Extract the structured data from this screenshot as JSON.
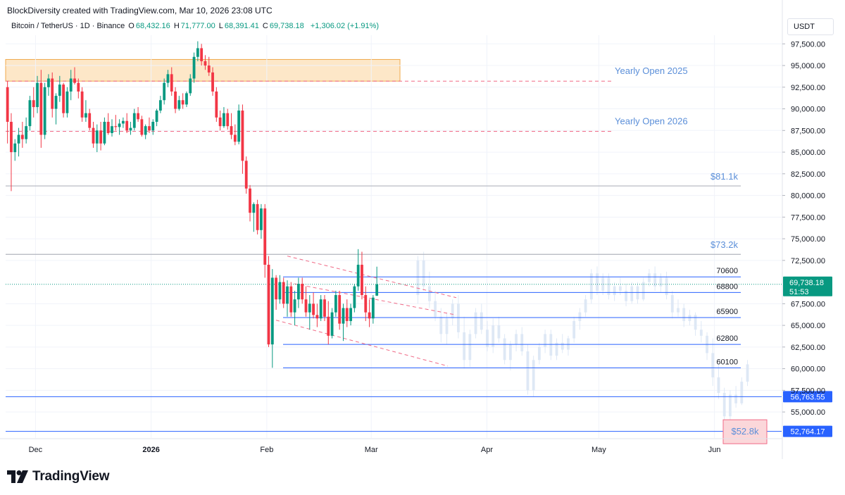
{
  "header": {
    "attribution": "BlockDiversity created with TradingView.com, Mar 10, 2026 23:08 UTC"
  },
  "legend": {
    "symbol": "Bitcoin / TetherUS · 1D · Binance",
    "o_label": "O",
    "o_value": "68,432.16",
    "h_label": "H",
    "h_value": "71,777.00",
    "l_label": "L",
    "l_value": "68,391.41",
    "c_label": "C",
    "c_value": "69,738.18",
    "change": "+1,306.02 (+1.91%)"
  },
  "unit": "USDT",
  "branding": {
    "logo_text": "TradingView"
  },
  "colors": {
    "up": "#089981",
    "down": "#f23645",
    "blue": "#2962ff",
    "level": "#5b8fd9",
    "gray": "#b2b5be",
    "pink_dash": "#f06a86",
    "box_fill": "#fde7c8",
    "box_border": "#f0a94b",
    "ghost": "#dbe6f5"
  },
  "chart_data": {
    "type": "candlestick",
    "x": [
      "2025-11-23",
      "2026-06-19"
    ],
    "ylim": [
      52000,
      98500
    ],
    "y_ticks": [
      "97,500.00",
      "95,000.00",
      "92,500.00",
      "90,000.00",
      "87,500.00",
      "85,000.00",
      "82,500.00",
      "80,000.00",
      "77,500.00",
      "75,000.00",
      "72,500.00",
      "67,500.00",
      "65,000.00",
      "62,500.00",
      "60,000.00",
      "57,500.00",
      "55,000.00"
    ],
    "y_tick_values": [
      97500,
      95000,
      92500,
      90000,
      87500,
      85000,
      82500,
      80000,
      77500,
      75000,
      72500,
      67500,
      65000,
      62500,
      60000,
      57500,
      55000
    ],
    "x_ticks": [
      {
        "label": "Dec",
        "date": "2025-12-01",
        "bold": false
      },
      {
        "label": "2026",
        "date": "2026-01-01",
        "bold": true
      },
      {
        "label": "Feb",
        "date": "2026-02-01",
        "bold": false
      },
      {
        "label": "Mar",
        "date": "2026-03-01",
        "bold": false
      },
      {
        "label": "Apr",
        "date": "2026-04-01",
        "bold": false
      },
      {
        "label": "May",
        "date": "2026-05-01",
        "bold": false
      },
      {
        "label": "Jun",
        "date": "2026-06-01",
        "bold": false
      }
    ],
    "candles": [
      [
        92500,
        93200,
        86000,
        88500
      ],
      [
        88500,
        89500,
        80500,
        85000
      ],
      [
        85000,
        86500,
        84000,
        86000
      ],
      [
        86000,
        87800,
        84500,
        87000
      ],
      [
        87000,
        88500,
        85500,
        86500
      ],
      [
        86500,
        89000,
        86000,
        88000
      ],
      [
        88000,
        91500,
        87500,
        91000
      ],
      [
        91000,
        92500,
        89000,
        90200
      ],
      [
        90200,
        93800,
        89500,
        93000
      ],
      [
        93000,
        94500,
        85500,
        87000
      ],
      [
        87000,
        93000,
        86500,
        92500
      ],
      [
        92500,
        94000,
        91500,
        93500
      ],
      [
        93500,
        94200,
        89000,
        90000
      ],
      [
        90000,
        91800,
        88200,
        91500
      ],
      [
        91500,
        93800,
        90800,
        92800
      ],
      [
        92800,
        93000,
        89000,
        89500
      ],
      [
        89500,
        92500,
        89000,
        92000
      ],
      [
        92000,
        94500,
        91000,
        93500
      ],
      [
        93500,
        94800,
        92800,
        93000
      ],
      [
        93000,
        93500,
        91200,
        92000
      ],
      [
        92000,
        92500,
        88500,
        89000
      ],
      [
        89000,
        91000,
        88500,
        89500
      ],
      [
        89500,
        90000,
        87500,
        87800
      ],
      [
        87800,
        88500,
        85500,
        86000
      ],
      [
        86000,
        88200,
        85000,
        87500
      ],
      [
        87500,
        88500,
        85200,
        86000
      ],
      [
        86000,
        89000,
        85800,
        88500
      ],
      [
        88500,
        89500,
        87000,
        87200
      ],
      [
        87200,
        88800,
        86800,
        88000
      ],
      [
        88000,
        89300,
        87500,
        87900
      ],
      [
        87900,
        88800,
        87000,
        88300
      ],
      [
        88300,
        89000,
        87800,
        88600
      ],
      [
        88600,
        89500,
        87200,
        87500
      ],
      [
        87500,
        88500,
        87000,
        87800
      ],
      [
        87800,
        90000,
        87500,
        89500
      ],
      [
        89500,
        90200,
        88500,
        88800
      ],
      [
        88800,
        89200,
        86800,
        87000
      ],
      [
        87000,
        88200,
        86500,
        88000
      ],
      [
        88000,
        89000,
        87200,
        87500
      ],
      [
        87500,
        88800,
        87000,
        88500
      ],
      [
        88500,
        90000,
        88000,
        89800
      ],
      [
        89800,
        91500,
        89500,
        91000
      ],
      [
        91000,
        93500,
        90500,
        93000
      ],
      [
        93000,
        94500,
        92500,
        94000
      ],
      [
        94000,
        94800,
        91500,
        92000
      ],
      [
        92000,
        92500,
        89500,
        90000
      ],
      [
        90000,
        91500,
        89800,
        91000
      ],
      [
        91000,
        91800,
        90000,
        90500
      ],
      [
        90500,
        92000,
        90200,
        91800
      ],
      [
        91800,
        94000,
        91500,
        93500
      ],
      [
        93500,
        96500,
        93000,
        96000
      ],
      [
        96000,
        97800,
        95500,
        97000
      ],
      [
        97000,
        97500,
        95000,
        95500
      ],
      [
        95500,
        96200,
        94500,
        95000
      ],
      [
        95000,
        96000,
        93800,
        94200
      ],
      [
        94200,
        94800,
        91500,
        92000
      ],
      [
        92000,
        92500,
        88500,
        89000
      ],
      [
        89000,
        89800,
        87500,
        88000
      ],
      [
        88000,
        90200,
        87800,
        89500
      ],
      [
        89500,
        90000,
        87600,
        88000
      ],
      [
        88000,
        89500,
        86500,
        87000
      ],
      [
        87000,
        88200,
        85800,
        86200
      ],
      [
        86200,
        90500,
        85900,
        89800
      ],
      [
        89800,
        90500,
        82500,
        84000
      ],
      [
        84000,
        84500,
        80200,
        80800
      ],
      [
        80800,
        81200,
        77000,
        78000
      ],
      [
        78000,
        79200,
        75800,
        79000
      ],
      [
        79000,
        79500,
        75500,
        76000
      ],
      [
        76000,
        79000,
        75000,
        78500
      ],
      [
        78500,
        79000,
        70500,
        72000
      ],
      [
        72000,
        73000,
        62500,
        62800
      ],
      [
        62800,
        71500,
        60100,
        70500
      ],
      [
        70500,
        70800,
        66800,
        68000
      ],
      [
        68000,
        70800,
        67500,
        70000
      ],
      [
        70000,
        70500,
        67000,
        67500
      ],
      [
        67500,
        70200,
        66000,
        69500
      ],
      [
        69500,
        70000,
        66000,
        66500
      ],
      [
        66500,
        69000,
        65000,
        68000
      ],
      [
        68000,
        70500,
        67000,
        69800
      ],
      [
        69800,
        70500,
        67500,
        68000
      ],
      [
        68000,
        69500,
        66000,
        66500
      ],
      [
        66500,
        68500,
        64500,
        67500
      ],
      [
        67500,
        68800,
        65800,
        66200
      ],
      [
        66200,
        67500,
        64800,
        65800
      ],
      [
        65800,
        68500,
        65500,
        68000
      ],
      [
        68000,
        68500,
        65500,
        66000
      ],
      [
        66000,
        67800,
        62800,
        63800
      ],
      [
        63800,
        67000,
        63500,
        66500
      ],
      [
        66500,
        69000,
        66000,
        68500
      ],
      [
        68500,
        69000,
        64500,
        65200
      ],
      [
        65200,
        67500,
        63200,
        67000
      ],
      [
        67000,
        68000,
        64800,
        65500
      ],
      [
        65500,
        67500,
        65000,
        67000
      ],
      [
        67000,
        69800,
        66500,
        69500
      ],
      [
        69500,
        73800,
        69000,
        72000
      ],
      [
        72000,
        73500,
        68000,
        68500
      ],
      [
        68500,
        69500,
        65500,
        66500
      ],
      [
        66500,
        68000,
        64800,
        65800
      ],
      [
        65800,
        68500,
        65200,
        68200
      ],
      [
        68432,
        71777,
        68391,
        69738
      ]
    ],
    "ghost_candles": [
      [
        68500,
        73000,
        67500,
        72500
      ],
      [
        72500,
        73500,
        69000,
        69500
      ],
      [
        69500,
        71200,
        67000,
        67800
      ],
      [
        67800,
        69000,
        65500,
        66000
      ],
      [
        66000,
        67000,
        63000,
        64000
      ],
      [
        64000,
        66500,
        62800,
        65800
      ],
      [
        65800,
        68000,
        65000,
        67500
      ],
      [
        67500,
        68500,
        63500,
        64200
      ],
      [
        64200,
        66000,
        60000,
        61000
      ],
      [
        61000,
        64500,
        60200,
        64000
      ],
      [
        64000,
        67000,
        63500,
        66500
      ],
      [
        66500,
        67500,
        64000,
        64500
      ],
      [
        64500,
        65500,
        62000,
        62500
      ],
      [
        62500,
        65800,
        61800,
        65000
      ],
      [
        65000,
        66000,
        63000,
        63500
      ],
      [
        63500,
        64000,
        60500,
        61000
      ],
      [
        61000,
        63200,
        59800,
        62800
      ],
      [
        62800,
        64500,
        62000,
        64000
      ],
      [
        64000,
        64800,
        61500,
        62000
      ],
      [
        62000,
        62800,
        57000,
        57500
      ],
      [
        57500,
        61500,
        56800,
        61000
      ],
      [
        61000,
        63000,
        60500,
        62500
      ],
      [
        62500,
        64500,
        61800,
        64000
      ],
      [
        64000,
        64500,
        61000,
        61500
      ],
      [
        61500,
        63500,
        61000,
        63000
      ],
      [
        63000,
        64000,
        61800,
        62200
      ],
      [
        62200,
        63800,
        61500,
        63500
      ],
      [
        63500,
        66000,
        63000,
        65500
      ],
      [
        65500,
        67000,
        64500,
        66500
      ],
      [
        66500,
        68500,
        66000,
        68000
      ],
      [
        68000,
        71500,
        67500,
        71000
      ],
      [
        71000,
        71800,
        68500,
        69000
      ],
      [
        69000,
        71000,
        68500,
        70500
      ],
      [
        70500,
        71000,
        68000,
        68500
      ],
      [
        68500,
        70000,
        67800,
        69500
      ],
      [
        69500,
        70500,
        68500,
        69000
      ],
      [
        69000,
        69800,
        67200,
        67800
      ],
      [
        67800,
        70000,
        67500,
        69500
      ],
      [
        69500,
        70000,
        67500,
        68000
      ],
      [
        68000,
        70500,
        67800,
        70000
      ],
      [
        70000,
        71500,
        69500,
        71000
      ],
      [
        71000,
        71800,
        69000,
        69500
      ],
      [
        69500,
        71000,
        68800,
        70500
      ],
      [
        70500,
        71200,
        68000,
        68500
      ],
      [
        68500,
        69000,
        65800,
        66500
      ],
      [
        66500,
        68000,
        66000,
        67000
      ],
      [
        67000,
        67500,
        64800,
        65500
      ],
      [
        65500,
        66800,
        65000,
        66200
      ],
      [
        66200,
        66500,
        63800,
        64500
      ],
      [
        64500,
        65500,
        63000,
        63800
      ],
      [
        63800,
        64200,
        61000,
        61800
      ],
      [
        61800,
        63500,
        58000,
        59000
      ],
      [
        59000,
        60500,
        56500,
        57200
      ],
      [
        57200,
        57800,
        53500,
        54500
      ],
      [
        54500,
        57500,
        54000,
        57000
      ],
      [
        57000,
        58000,
        55500,
        56000
      ],
      [
        56000,
        59000,
        55800,
        58500
      ],
      [
        58500,
        61000,
        58000,
        60500
      ]
    ],
    "horizontal_levels": [
      {
        "label": "$81.1k",
        "value": 81100,
        "style": "gray"
      },
      {
        "label": "$73.2k",
        "value": 73200,
        "style": "gray"
      },
      {
        "label": "70600",
        "value": 70600,
        "style": "blue"
      },
      {
        "label": "68800",
        "value": 68800,
        "style": "blue"
      },
      {
        "label": "65900",
        "value": 65900,
        "style": "blue"
      },
      {
        "label": "62800",
        "value": 62800,
        "style": "blue"
      },
      {
        "label": "60100",
        "value": 60100,
        "style": "blue"
      },
      {
        "label": "56,763.55",
        "value": 56763.55,
        "style": "blue-axis"
      },
      {
        "label": "52,764.17",
        "value": 52764.17,
        "style": "blue-axis"
      }
    ],
    "yearly_opens": [
      {
        "label": "Yearly Open 2025",
        "value": 93200
      },
      {
        "label": "Yearly Open 2026",
        "value": 87400
      }
    ],
    "current_price": {
      "label": "69,738.18",
      "countdown": "51:53",
      "value": 69738.18
    },
    "resistance_zone": {
      "from": 93200,
      "to": 95700
    },
    "target_box": {
      "label": "$52.8k",
      "value": 52800
    },
    "channel": {
      "upper": [
        [
          70500,
          "2026-02-05"
        ],
        [
          69900,
          "2026-03-22"
        ]
      ],
      "lower": [
        [
          62000,
          "2026-02-05"
        ],
        [
          60500,
          "2026-03-25"
        ]
      ]
    }
  }
}
